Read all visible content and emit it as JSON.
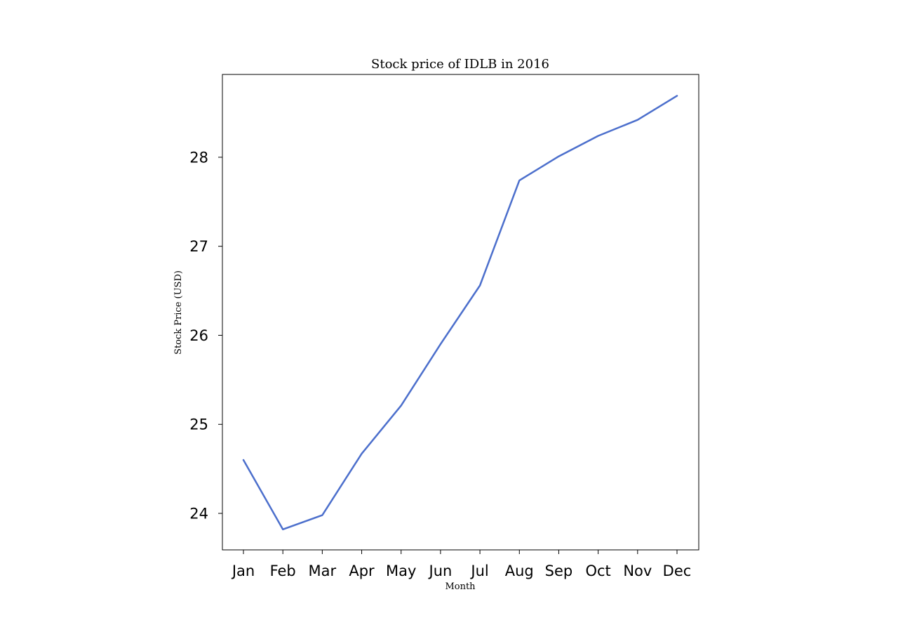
{
  "chart_data": {
    "type": "line",
    "title": "Stock price of IDLB in 2016",
    "xlabel": "Month",
    "ylabel": "Stock Price (USD)",
    "categories": [
      "Jan",
      "Feb",
      "Mar",
      "Apr",
      "May",
      "Jun",
      "Jul",
      "Aug",
      "Sep",
      "Oct",
      "Nov",
      "Dec"
    ],
    "series": [
      {
        "values": [
          24.6,
          23.82,
          23.98,
          24.67,
          25.21,
          25.9,
          26.56,
          27.74,
          28.01,
          28.24,
          28.42,
          28.69
        ],
        "color": "#4c6fcc"
      }
    ],
    "yticks": [
      24,
      25,
      26,
      27,
      28
    ],
    "ylim": [
      23.59,
      28.93
    ],
    "grid": false,
    "legend": "none"
  }
}
